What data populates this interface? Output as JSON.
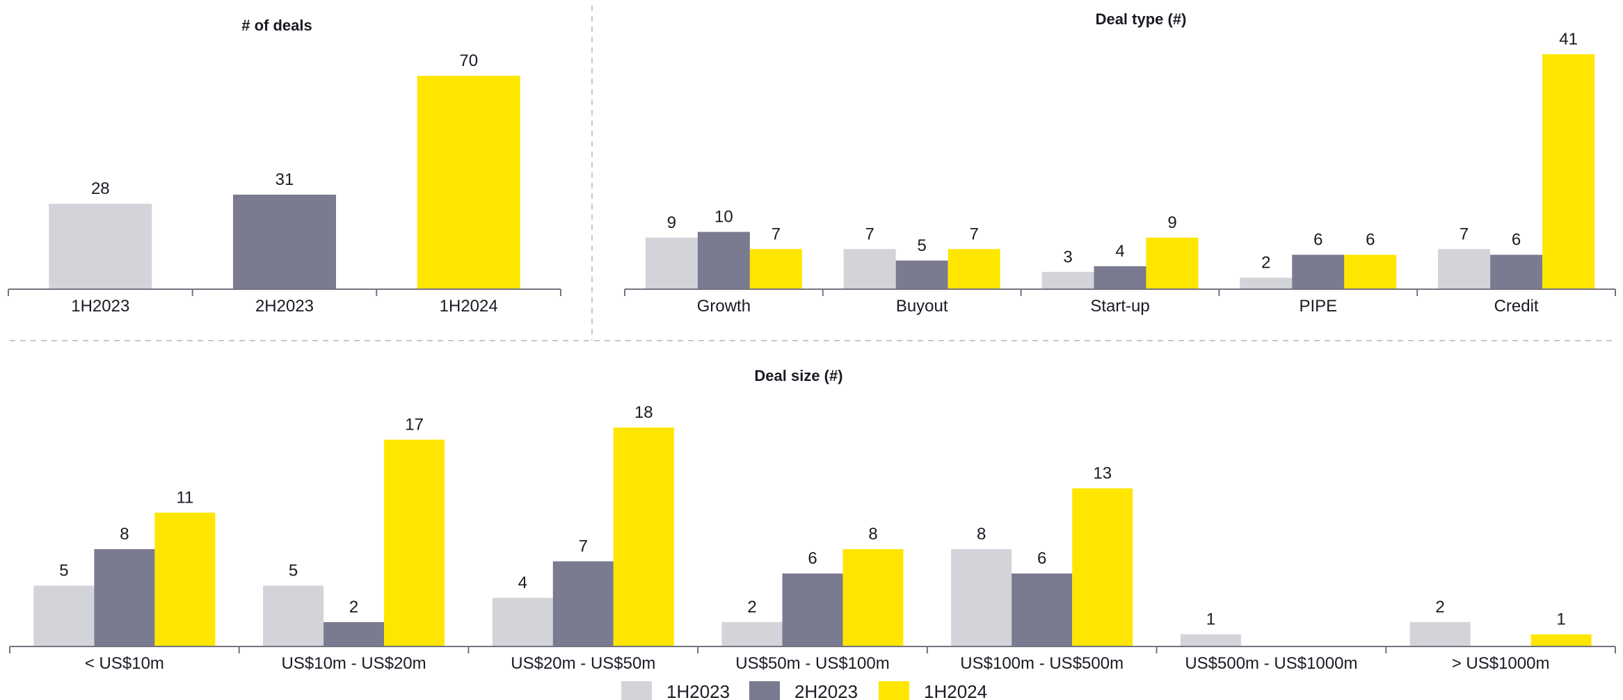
{
  "colors": {
    "1H2023": "#d3d3da",
    "2H2023": "#7a7a90",
    "1H2024": "#ffe600",
    "axis": "#747480",
    "divider": "#c8c8cc",
    "text": "#1a1a24"
  },
  "legend": [
    {
      "name": "1H2023",
      "color": "#d3d3da"
    },
    {
      "name": "2H2023",
      "color": "#7a7a90"
    },
    {
      "name": "1H2024",
      "color": "#ffe600"
    }
  ],
  "chart_data": [
    {
      "type": "bar",
      "title": "# of deals",
      "categories": [
        "1H2023",
        "2H2023",
        "1H2024"
      ],
      "values": [
        28,
        31,
        70
      ],
      "colors": [
        "#d3d3da",
        "#7a7a90",
        "#ffe600"
      ],
      "ylim": [
        0,
        70
      ],
      "grid": false
    },
    {
      "type": "bar",
      "title": "Deal type (#)",
      "categories": [
        "Growth",
        "Buyout",
        "Start-up",
        "PIPE",
        "Credit"
      ],
      "series": [
        {
          "name": "1H2023",
          "values": [
            9,
            7,
            3,
            2,
            7
          ]
        },
        {
          "name": "2H2023",
          "values": [
            10,
            5,
            4,
            6,
            6
          ]
        },
        {
          "name": "1H2024",
          "values": [
            7,
            7,
            9,
            6,
            41
          ]
        }
      ],
      "ylim": [
        0,
        41
      ],
      "grid": false
    },
    {
      "type": "bar",
      "title": "Deal size (#)",
      "categories": [
        "< US$10m",
        "US$10m - US$20m",
        "US$20m - US$50m",
        "US$50m - US$100m",
        "US$100m - US$500m",
        "US$500m - US$1000m",
        "> US$1000m"
      ],
      "series": [
        {
          "name": "1H2023",
          "values": [
            5,
            5,
            4,
            2,
            8,
            1,
            2
          ]
        },
        {
          "name": "2H2023",
          "values": [
            8,
            2,
            7,
            6,
            6,
            null,
            null
          ]
        },
        {
          "name": "1H2024",
          "values": [
            11,
            17,
            18,
            8,
            13,
            null,
            1
          ]
        }
      ],
      "ylim": [
        0,
        18
      ],
      "grid": false,
      "legend_position": "bottom"
    }
  ]
}
